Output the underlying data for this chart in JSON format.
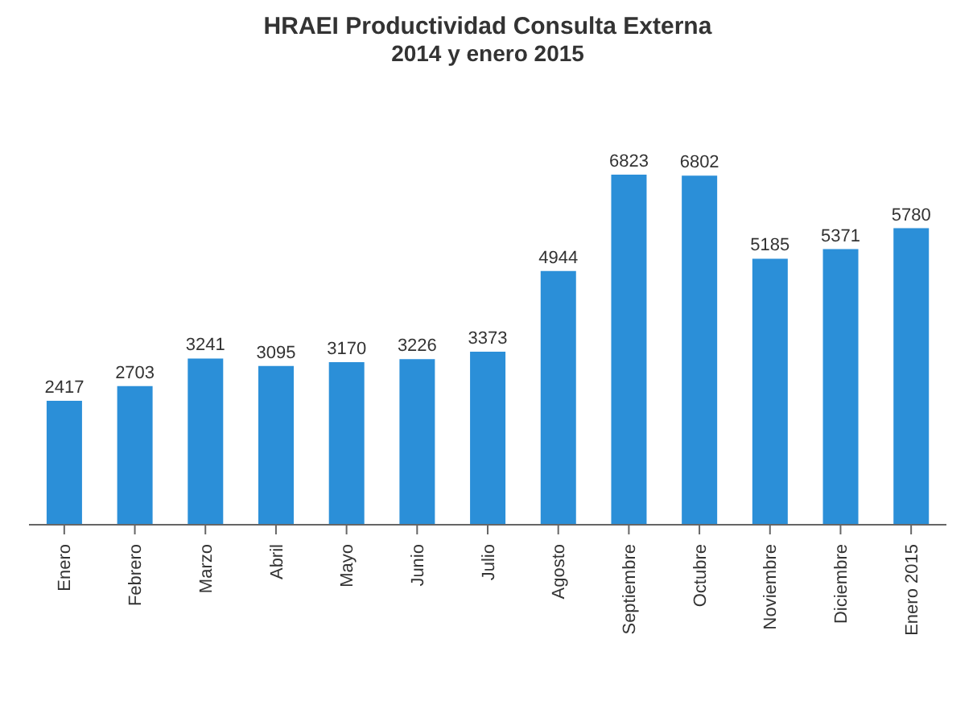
{
  "chart_data": {
    "type": "bar",
    "title": "HRAEI Productividad Consulta Externa",
    "subtitle": "2014 y enero 2015",
    "categories": [
      "Enero",
      "Febrero",
      "Marzo",
      "Abril",
      "Mayo",
      "Junio",
      "Julio",
      "Agosto",
      "Septiembre",
      "Octubre",
      "Noviembre",
      "Diciembre",
      "Enero 2015"
    ],
    "values": [
      2417,
      2703,
      3241,
      3095,
      3170,
      3226,
      3373,
      4944,
      6823,
      6802,
      5185,
      5371,
      5780
    ],
    "color": "#2b8fd8",
    "data_labels": true,
    "grid": false,
    "legend": false
  }
}
